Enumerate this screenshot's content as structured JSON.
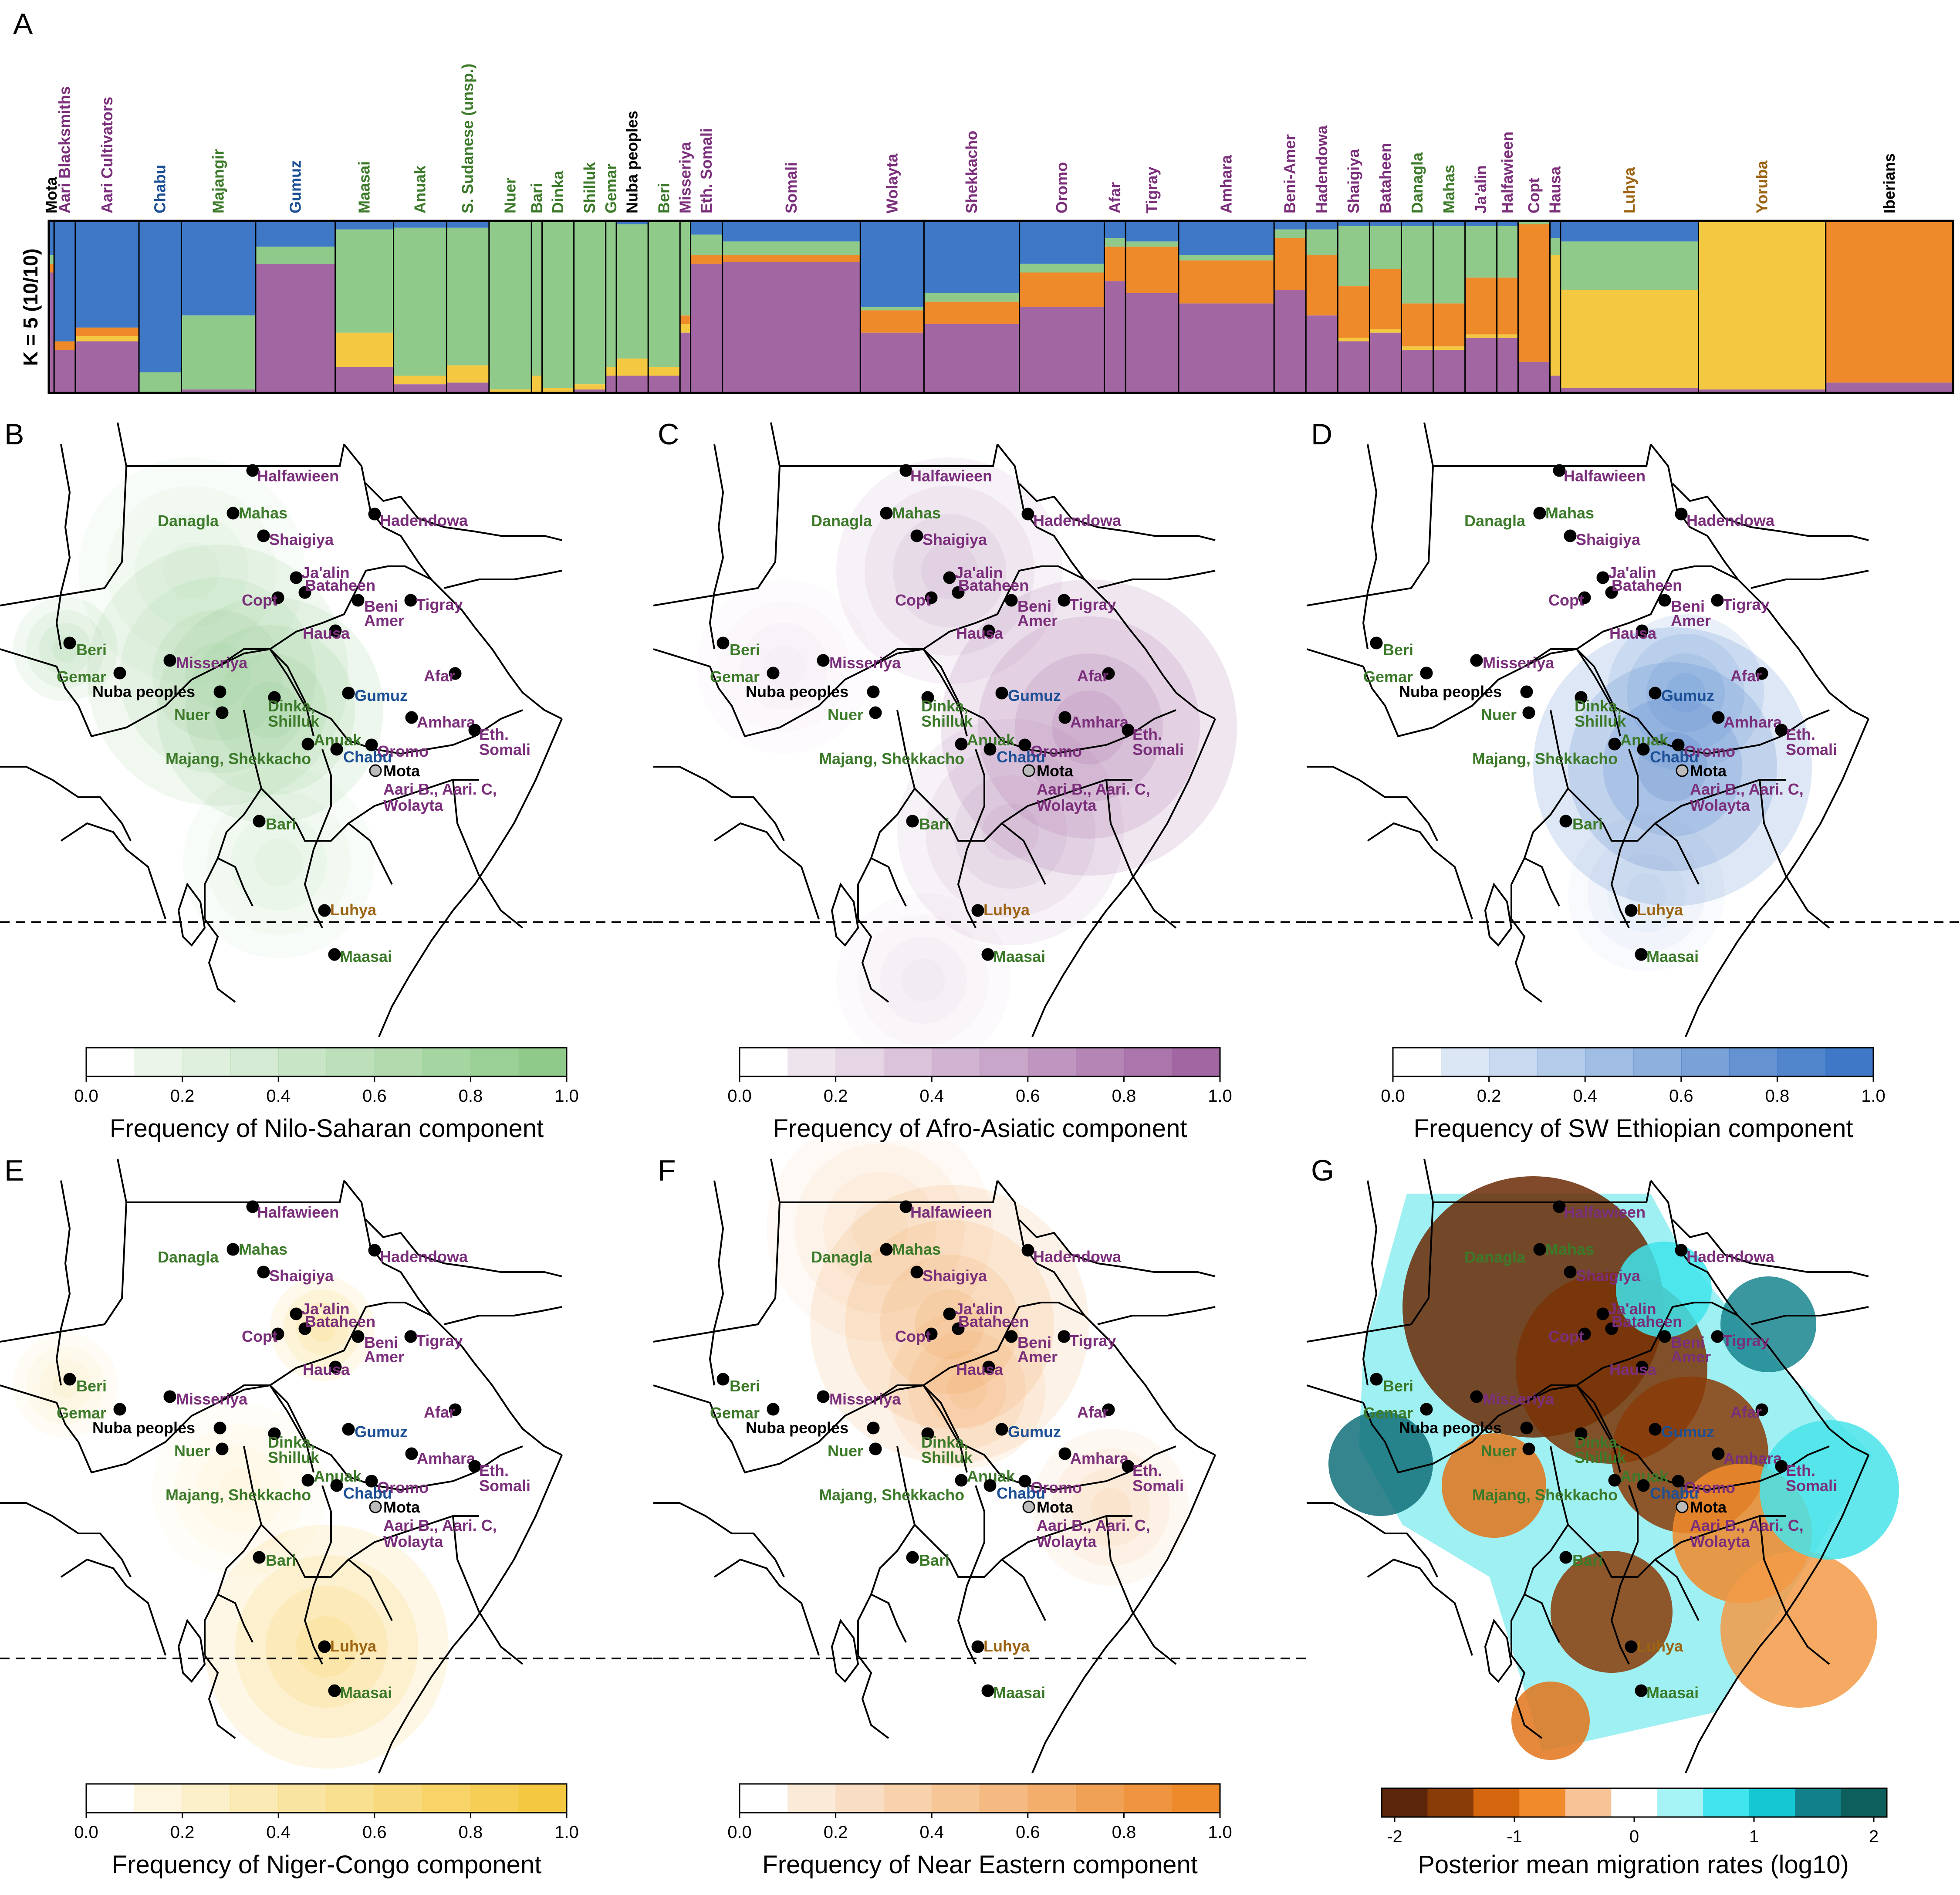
{
  "colors": {
    "nilo_saharan": "#8fca8a",
    "afro_asiatic": "#a267a3",
    "sw_ethiopian": "#3e78c7",
    "niger_congo": "#f5c842",
    "near_eastern": "#ee8a2a",
    "group_afro_asiatic": "#7b2f7b",
    "group_nilo_saharan": "#3c7a2a",
    "group_omotic": "#1c4f95",
    "group_niger_congo": "#9c6412",
    "group_other": "#000000"
  },
  "panel_a": {
    "letter": "A",
    "k_label": "K = 5 (10/10)",
    "populations": [
      {
        "name": "Mota",
        "group": "group_other",
        "w": 1
      },
      {
        "name": "Aari Blacksmiths",
        "group": "group_afro_asiatic",
        "w": 4
      },
      {
        "name": "Aari Cultivators",
        "group": "group_afro_asiatic",
        "w": 12
      },
      {
        "name": "Chabu",
        "group": "group_omotic",
        "w": 8
      },
      {
        "name": "Majangir",
        "group": "group_nilo_saharan",
        "w": 14
      },
      {
        "name": "Gumuz",
        "group": "group_omotic",
        "w": 15
      },
      {
        "name": "Maasai",
        "group": "group_nilo_saharan",
        "w": 11
      },
      {
        "name": "Anuak",
        "group": "group_nilo_saharan",
        "w": 10
      },
      {
        "name": "S. Sudanese (unsp.)",
        "group": "group_nilo_saharan",
        "w": 8
      },
      {
        "name": "Nuer",
        "group": "group_nilo_saharan",
        "w": 8
      },
      {
        "name": "Bari",
        "group": "group_nilo_saharan",
        "w": 2
      },
      {
        "name": "Dinka",
        "group": "group_nilo_saharan",
        "w": 6
      },
      {
        "name": "Shilluk",
        "group": "group_nilo_saharan",
        "w": 6
      },
      {
        "name": "Gemar",
        "group": "group_nilo_saharan",
        "w": 2
      },
      {
        "name": "Nuba peoples",
        "group": "group_other",
        "w": 6
      },
      {
        "name": "Beri",
        "group": "group_nilo_saharan",
        "w": 6
      },
      {
        "name": "Misseriya",
        "group": "group_afro_asiatic",
        "w": 2
      },
      {
        "name": "Eth. Somali",
        "group": "group_afro_asiatic",
        "w": 6
      },
      {
        "name": "Somali",
        "group": "group_afro_asiatic",
        "w": 26
      },
      {
        "name": "Wolayta",
        "group": "group_afro_asiatic",
        "w": 12
      },
      {
        "name": "Shekkacho",
        "group": "group_afro_asiatic",
        "w": 18
      },
      {
        "name": "Oromo",
        "group": "group_afro_asiatic",
        "w": 16
      },
      {
        "name": "Afar",
        "group": "group_afro_asiatic",
        "w": 4
      },
      {
        "name": "Tigray",
        "group": "group_afro_asiatic",
        "w": 10
      },
      {
        "name": "Amhara",
        "group": "group_afro_asiatic",
        "w": 18
      },
      {
        "name": "Beni-Amer",
        "group": "group_afro_asiatic",
        "w": 6
      },
      {
        "name": "Hadendowa",
        "group": "group_afro_asiatic",
        "w": 6
      },
      {
        "name": "Shaigiya",
        "group": "group_afro_asiatic",
        "w": 6
      },
      {
        "name": "Bataheen",
        "group": "group_afro_asiatic",
        "w": 6
      },
      {
        "name": "Danagla",
        "group": "group_nilo_saharan",
        "w": 6
      },
      {
        "name": "Mahas",
        "group": "group_nilo_saharan",
        "w": 6
      },
      {
        "name": "Ja'alin",
        "group": "group_afro_asiatic",
        "w": 6
      },
      {
        "name": "Halfawieen",
        "group": "group_afro_asiatic",
        "w": 4
      },
      {
        "name": "Copt",
        "group": "group_afro_asiatic",
        "w": 6
      },
      {
        "name": "Hausa",
        "group": "group_afro_asiatic",
        "w": 2
      },
      {
        "name": "Luhya",
        "group": "group_niger_congo",
        "w": 26
      },
      {
        "name": "Yoruba",
        "group": "group_niger_congo",
        "w": 24
      },
      {
        "name": "Iberians",
        "group": "group_other",
        "w": 24
      }
    ],
    "compositions": [
      {
        "pop": "Mota",
        "sw": 0.2,
        "ns": 0.05,
        "aa": 0.7,
        "nc": 0.0,
        "ne": 0.05
      },
      {
        "pop": "Aari Blacksmiths",
        "sw": 0.7,
        "ns": 0.0,
        "aa": 0.25,
        "nc": 0.0,
        "ne": 0.05
      },
      {
        "pop": "Aari Cultivators",
        "sw": 0.62,
        "ns": 0.0,
        "aa": 0.3,
        "nc": 0.03,
        "ne": 0.05
      },
      {
        "pop": "Chabu",
        "sw": 0.88,
        "ns": 0.12,
        "aa": 0.0,
        "nc": 0.0,
        "ne": 0.0
      },
      {
        "pop": "Majangir",
        "sw": 0.55,
        "ns": 0.43,
        "aa": 0.02,
        "nc": 0.0,
        "ne": 0.0
      },
      {
        "pop": "Gumuz",
        "sw": 0.15,
        "ns": 0.1,
        "aa": 0.75,
        "nc": 0.0,
        "ne": 0.0
      },
      {
        "pop": "Maasai",
        "sw": 0.05,
        "ns": 0.6,
        "aa": 0.15,
        "nc": 0.2,
        "ne": 0.0
      },
      {
        "pop": "Anuak",
        "sw": 0.04,
        "ns": 0.86,
        "aa": 0.05,
        "nc": 0.05,
        "ne": 0.0
      },
      {
        "pop": "S. Sudanese (unsp.)",
        "sw": 0.04,
        "ns": 0.8,
        "aa": 0.06,
        "nc": 0.1,
        "ne": 0.0
      },
      {
        "pop": "Nuer",
        "sw": 0.0,
        "ns": 0.98,
        "aa": 0.0,
        "nc": 0.02,
        "ne": 0.0
      },
      {
        "pop": "Bari",
        "sw": 0.0,
        "ns": 0.9,
        "aa": 0.0,
        "nc": 0.1,
        "ne": 0.0
      },
      {
        "pop": "Dinka",
        "sw": 0.0,
        "ns": 0.97,
        "aa": 0.0,
        "nc": 0.03,
        "ne": 0.0
      },
      {
        "pop": "Shilluk",
        "sw": 0.0,
        "ns": 0.95,
        "aa": 0.02,
        "nc": 0.03,
        "ne": 0.0
      },
      {
        "pop": "Gemar",
        "sw": 0.0,
        "ns": 0.85,
        "aa": 0.1,
        "nc": 0.05,
        "ne": 0.0
      },
      {
        "pop": "Nuba peoples",
        "sw": 0.02,
        "ns": 0.78,
        "aa": 0.1,
        "nc": 0.1,
        "ne": 0.0
      },
      {
        "pop": "Beri",
        "sw": 0.0,
        "ns": 0.85,
        "aa": 0.1,
        "nc": 0.05,
        "ne": 0.0
      },
      {
        "pop": "Misseriya",
        "sw": 0.0,
        "ns": 0.55,
        "aa": 0.35,
        "nc": 0.05,
        "ne": 0.05
      },
      {
        "pop": "Eth. Somali",
        "sw": 0.08,
        "ns": 0.12,
        "aa": 0.75,
        "nc": 0.0,
        "ne": 0.05
      },
      {
        "pop": "Somali",
        "sw": 0.12,
        "ns": 0.08,
        "aa": 0.76,
        "nc": 0.0,
        "ne": 0.04
      },
      {
        "pop": "Wolayta",
        "sw": 0.5,
        "ns": 0.02,
        "aa": 0.35,
        "nc": 0.0,
        "ne": 0.13
      },
      {
        "pop": "Shekkacho",
        "sw": 0.42,
        "ns": 0.05,
        "aa": 0.4,
        "nc": 0.0,
        "ne": 0.13
      },
      {
        "pop": "Oromo",
        "sw": 0.25,
        "ns": 0.05,
        "aa": 0.5,
        "nc": 0.0,
        "ne": 0.2
      },
      {
        "pop": "Afar",
        "sw": 0.1,
        "ns": 0.05,
        "aa": 0.65,
        "nc": 0.0,
        "ne": 0.2
      },
      {
        "pop": "Tigray",
        "sw": 0.12,
        "ns": 0.03,
        "aa": 0.58,
        "nc": 0.0,
        "ne": 0.27
      },
      {
        "pop": "Amhara",
        "sw": 0.2,
        "ns": 0.03,
        "aa": 0.52,
        "nc": 0.0,
        "ne": 0.25
      },
      {
        "pop": "Beni-Amer",
        "sw": 0.05,
        "ns": 0.05,
        "aa": 0.6,
        "nc": 0.0,
        "ne": 0.3
      },
      {
        "pop": "Hadendowa",
        "sw": 0.05,
        "ns": 0.15,
        "aa": 0.45,
        "nc": 0.0,
        "ne": 0.35
      },
      {
        "pop": "Shaigiya",
        "sw": 0.03,
        "ns": 0.35,
        "aa": 0.3,
        "nc": 0.02,
        "ne": 0.3
      },
      {
        "pop": "Bataheen",
        "sw": 0.03,
        "ns": 0.25,
        "aa": 0.35,
        "nc": 0.02,
        "ne": 0.35
      },
      {
        "pop": "Danagla",
        "sw": 0.03,
        "ns": 0.45,
        "aa": 0.25,
        "nc": 0.02,
        "ne": 0.25
      },
      {
        "pop": "Mahas",
        "sw": 0.03,
        "ns": 0.45,
        "aa": 0.25,
        "nc": 0.02,
        "ne": 0.25
      },
      {
        "pop": "Ja'alin",
        "sw": 0.03,
        "ns": 0.3,
        "aa": 0.32,
        "nc": 0.02,
        "ne": 0.33
      },
      {
        "pop": "Halfawieen",
        "sw": 0.03,
        "ns": 0.3,
        "aa": 0.32,
        "nc": 0.02,
        "ne": 0.33
      },
      {
        "pop": "Copt",
        "sw": 0.0,
        "ns": 0.02,
        "aa": 0.18,
        "nc": 0.0,
        "ne": 0.8
      },
      {
        "pop": "Hausa",
        "sw": 0.1,
        "ns": 0.1,
        "aa": 0.1,
        "nc": 0.7,
        "ne": 0.0
      },
      {
        "pop": "Luhya",
        "sw": 0.12,
        "ns": 0.28,
        "aa": 0.03,
        "nc": 0.57,
        "ne": 0.0
      },
      {
        "pop": "Yoruba",
        "sw": 0.0,
        "ns": 0.0,
        "aa": 0.02,
        "nc": 0.98,
        "ne": 0.0
      },
      {
        "pop": "Iberians",
        "sw": 0.0,
        "ns": 0.0,
        "aa": 0.06,
        "nc": 0.0,
        "ne": 0.94
      }
    ]
  },
  "panels": [
    {
      "letter": "B",
      "title": "Frequency of Nilo-Saharan component",
      "color_key": "nilo_saharan"
    },
    {
      "letter": "C",
      "title": "Frequency of Afro-Asiatic component",
      "color_key": "afro_asiatic"
    },
    {
      "letter": "D",
      "title": "Frequency of SW Ethiopian component",
      "color_key": "sw_ethiopian"
    },
    {
      "letter": "E",
      "title": "Frequency of Niger-Congo component",
      "color_key": "niger_congo"
    },
    {
      "letter": "F",
      "title": "Frequency of Near Eastern component",
      "color_key": "near_eastern"
    },
    {
      "letter": "G",
      "title": "Posterior mean migration rates (log10)",
      "color_key": "migration"
    }
  ],
  "colorbar_ticks": [
    "0.0",
    "0.2",
    "0.4",
    "0.6",
    "0.8",
    "1.0"
  ],
  "migration_ticks": [
    "-2",
    "-1",
    "0",
    "1",
    "2"
  ],
  "map_labels": [
    {
      "text": "Halfawieen",
      "group": "group_afro_asiatic"
    },
    {
      "text": "Danagla",
      "group": "group_nilo_saharan"
    },
    {
      "text": "Mahas",
      "group": "group_nilo_saharan"
    },
    {
      "text": "Shaigiya",
      "group": "group_afro_asiatic"
    },
    {
      "text": "Hadendowa",
      "group": "group_afro_asiatic"
    },
    {
      "text": "Ja'alin",
      "group": "group_afro_asiatic"
    },
    {
      "text": "Bataheen",
      "group": "group_afro_asiatic"
    },
    {
      "text": "Copt",
      "group": "group_afro_asiatic"
    },
    {
      "text": "Beni",
      "group": "group_afro_asiatic"
    },
    {
      "text": "Amer",
      "group": "group_afro_asiatic"
    },
    {
      "text": "Tigray",
      "group": "group_afro_asiatic"
    },
    {
      "text": "Hausa",
      "group": "group_afro_asiatic"
    },
    {
      "text": "Beri",
      "group": "group_nilo_saharan"
    },
    {
      "text": "Misseriya",
      "group": "group_afro_asiatic"
    },
    {
      "text": "Gemar",
      "group": "group_nilo_saharan"
    },
    {
      "text": "Nuba peoples",
      "group": "group_other"
    },
    {
      "text": "Gumuz",
      "group": "group_omotic"
    },
    {
      "text": "Afar",
      "group": "group_afro_asiatic"
    },
    {
      "text": "Dinka,",
      "group": "group_nilo_saharan"
    },
    {
      "text": "Shilluk",
      "group": "group_nilo_saharan"
    },
    {
      "text": "Nuer",
      "group": "group_nilo_saharan"
    },
    {
      "text": "Amhara",
      "group": "group_afro_asiatic"
    },
    {
      "text": "Eth.",
      "group": "group_afro_asiatic"
    },
    {
      "text": "Somali",
      "group": "group_afro_asiatic"
    },
    {
      "text": "Anuak",
      "group": "group_nilo_saharan"
    },
    {
      "text": "Oromo",
      "group": "group_afro_asiatic"
    },
    {
      "text": "Chabu",
      "group": "group_omotic"
    },
    {
      "text": "Majang, Shekkacho",
      "group": "group_nilo_saharan"
    },
    {
      "text": "Mota",
      "group": "group_other"
    },
    {
      "text": "Aari B., Aari. C,",
      "group": "group_afro_asiatic"
    },
    {
      "text": "Wolayta",
      "group": "group_afro_asiatic"
    },
    {
      "text": "Bari",
      "group": "group_nilo_saharan"
    },
    {
      "text": "Luhya",
      "group": "group_niger_congo"
    },
    {
      "text": "Maasai",
      "group": "group_nilo_saharan"
    }
  ]
}
